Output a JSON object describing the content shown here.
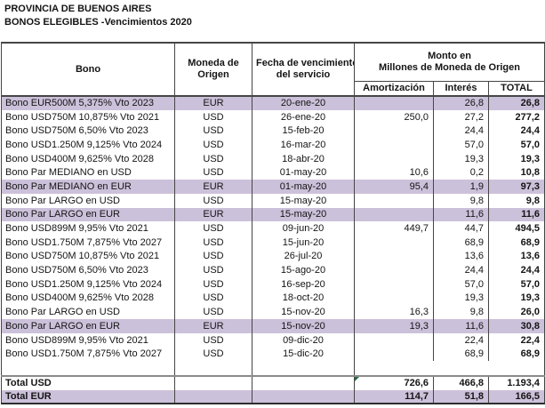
{
  "titles": {
    "line1": "PROVINCIA DE BUENOS AIRES",
    "line2": "BONOS ELEGIBLES -Vencimientos 2020"
  },
  "table": {
    "headers": {
      "bono": "Bono",
      "moneda": {
        "line1": "Moneda de",
        "line2": "Origen"
      },
      "fecha": {
        "line1": "Fecha de vencimiento",
        "line2": "del servicio"
      },
      "monto": {
        "line1": "Monto en",
        "line2": "Millones de Moneda de Origen"
      },
      "amortizacion": "Amortización",
      "interes": "Interés",
      "total": "TOTAL"
    },
    "rows": [
      {
        "bono": "Bono EUR500M 5,375% Vto 2023",
        "moneda": "EUR",
        "fecha": "20-ene-20",
        "amortizacion": "",
        "interes": "26,8",
        "total": "26,8",
        "highlight": true
      },
      {
        "bono": "Bono USD750M 10,875% Vto 2021",
        "moneda": "USD",
        "fecha": "26-ene-20",
        "amortizacion": "250,0",
        "interes": "27,2",
        "total": "277,2",
        "highlight": false
      },
      {
        "bono": "Bono USD750M 6,50% Vto 2023",
        "moneda": "USD",
        "fecha": "15-feb-20",
        "amortizacion": "",
        "interes": "24,4",
        "total": "24,4",
        "highlight": false
      },
      {
        "bono": "Bono USD1.250M 9,125% Vto 2024",
        "moneda": "USD",
        "fecha": "16-mar-20",
        "amortizacion": "",
        "interes": "57,0",
        "total": "57,0",
        "highlight": false
      },
      {
        "bono": "Bono USD400M 9,625% Vto 2028",
        "moneda": "USD",
        "fecha": "18-abr-20",
        "amortizacion": "",
        "interes": "19,3",
        "total": "19,3",
        "highlight": false
      },
      {
        "bono": "Bono Par MEDIANO en USD",
        "moneda": "USD",
        "fecha": "01-may-20",
        "amortizacion": "10,6",
        "interes": "0,2",
        "total": "10,8",
        "highlight": false
      },
      {
        "bono": "Bono Par MEDIANO en EUR",
        "moneda": "EUR",
        "fecha": "01-may-20",
        "amortizacion": "95,4",
        "interes": "1,9",
        "total": "97,3",
        "highlight": true
      },
      {
        "bono": "Bono Par LARGO en USD",
        "moneda": "USD",
        "fecha": "15-may-20",
        "amortizacion": "",
        "interes": "9,8",
        "total": "9,8",
        "highlight": false
      },
      {
        "bono": "Bono Par LARGO en EUR",
        "moneda": "EUR",
        "fecha": "15-may-20",
        "amortizacion": "",
        "interes": "11,6",
        "total": "11,6",
        "highlight": true
      },
      {
        "bono": "Bono USD899M 9,95% Vto 2021",
        "moneda": "USD",
        "fecha": "09-jun-20",
        "amortizacion": "449,7",
        "interes": "44,7",
        "total": "494,5",
        "highlight": false
      },
      {
        "bono": "Bono USD1.750M 7,875% Vto 2027",
        "moneda": "USD",
        "fecha": "15-jun-20",
        "amortizacion": "",
        "interes": "68,9",
        "total": "68,9",
        "highlight": false
      },
      {
        "bono": "Bono USD750M 10,875% Vto 2021",
        "moneda": "USD",
        "fecha": "26-jul-20",
        "amortizacion": "",
        "interes": "13,6",
        "total": "13,6",
        "highlight": false
      },
      {
        "bono": "Bono USD750M 6,50% Vto 2023",
        "moneda": "USD",
        "fecha": "15-ago-20",
        "amortizacion": "",
        "interes": "24,4",
        "total": "24,4",
        "highlight": false
      },
      {
        "bono": "Bono USD1.250M 9,125% Vto 2024",
        "moneda": "USD",
        "fecha": "16-sep-20",
        "amortizacion": "",
        "interes": "57,0",
        "total": "57,0",
        "highlight": false
      },
      {
        "bono": "Bono USD400M 9,625% Vto 2028",
        "moneda": "USD",
        "fecha": "18-oct-20",
        "amortizacion": "",
        "interes": "19,3",
        "total": "19,3",
        "highlight": false
      },
      {
        "bono": "Bono Par LARGO en USD",
        "moneda": "USD",
        "fecha": "15-nov-20",
        "amortizacion": "16,3",
        "interes": "9,8",
        "total": "26,0",
        "highlight": false
      },
      {
        "bono": "Bono Par LARGO en EUR",
        "moneda": "EUR",
        "fecha": "15-nov-20",
        "amortizacion": "19,3",
        "interes": "11,6",
        "total": "30,8",
        "highlight": true
      },
      {
        "bono": "Bono USD899M 9,95% Vto 2021",
        "moneda": "USD",
        "fecha": "09-dic-20",
        "amortizacion": "",
        "interes": "22,4",
        "total": "22,4",
        "highlight": false
      },
      {
        "bono": "Bono USD1.750M 7,875% Vto 2027",
        "moneda": "USD",
        "fecha": "15-dic-20",
        "amortizacion": "",
        "interes": "68,9",
        "total": "68,9",
        "highlight": false
      }
    ],
    "totals": [
      {
        "label": "Total USD",
        "amortizacion": "726,6",
        "interes": "466,8",
        "total": "1.193,4",
        "highlight": false,
        "error_indicator": true
      },
      {
        "label": "Total EUR",
        "amortizacion": "114,7",
        "interes": "51,8",
        "total": "166,5",
        "highlight": true,
        "error_indicator": false
      }
    ]
  },
  "colors": {
    "row_highlight": "#ccc1da",
    "grid": "#454545",
    "totals_divider": "#8a8a8a",
    "flag_green": "#1e7145"
  }
}
